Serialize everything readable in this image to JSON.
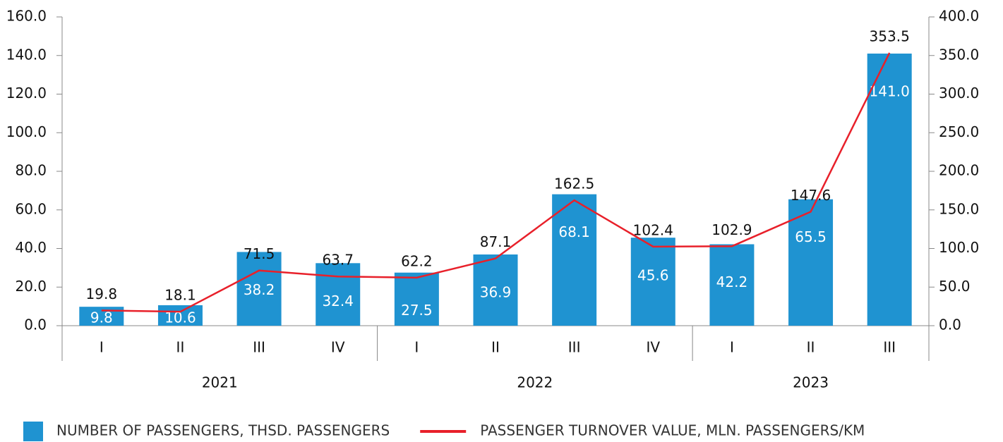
{
  "chart_data": {
    "type": "combo",
    "categories": [
      "I",
      "II",
      "III",
      "IV",
      "I",
      "II",
      "III",
      "IV",
      "I",
      "II",
      "III"
    ],
    "groups": [
      {
        "name": "2021",
        "count": 4
      },
      {
        "name": "2022",
        "count": 4
      },
      {
        "name": "2023",
        "count": 3
      }
    ],
    "series": [
      {
        "name": "NUMBER OF PASSENGERS, THSD. PASSENGERS",
        "type": "bar",
        "color": "#1f93d1",
        "values": [
          9.8,
          10.6,
          38.2,
          32.4,
          27.5,
          36.9,
          68.1,
          45.6,
          42.2,
          65.5,
          141.0
        ],
        "value_labels": [
          "9.8",
          "10.6",
          "38.2",
          "32.4",
          "27.5",
          "36.9",
          "68.1",
          "45.6",
          "42.2",
          "65.5",
          "141.0"
        ]
      },
      {
        "name": "PASSENGER TURNOVER VALUE, MLN. PASSENGERS/KM",
        "type": "line",
        "axis": "y2",
        "color": "#e8202a",
        "values": [
          19.8,
          18.1,
          71.5,
          63.7,
          62.2,
          87.1,
          162.5,
          102.4,
          102.9,
          147.6,
          353.5
        ],
        "value_labels": [
          "19.8",
          "18.1",
          "71.5",
          "63.7",
          "62.2",
          "87.1",
          "162.5",
          "102.4",
          "102.9",
          "147.6",
          "353.5"
        ]
      }
    ],
    "ylim": [
      0,
      160
    ],
    "yticks": [
      {
        "value": 0,
        "label": "0.0"
      },
      {
        "value": 20,
        "label": "20.0"
      },
      {
        "value": 40,
        "label": "40.0"
      },
      {
        "value": 60,
        "label": "60.0"
      },
      {
        "value": 80,
        "label": "80.0"
      },
      {
        "value": 100,
        "label": "100.0"
      },
      {
        "value": 120,
        "label": "120.0"
      },
      {
        "value": 140,
        "label": "140.0"
      },
      {
        "value": 160,
        "label": "160.0"
      }
    ],
    "y2lim": [
      0,
      400
    ],
    "y2ticks": [
      {
        "value": 0,
        "label": "0.0"
      },
      {
        "value": 50,
        "label": "50.0"
      },
      {
        "value": 100,
        "label": "100.0"
      },
      {
        "value": 150,
        "label": "150.0"
      },
      {
        "value": 200,
        "label": "200.0"
      },
      {
        "value": 250,
        "label": "250.0"
      },
      {
        "value": 300,
        "label": "300.0"
      },
      {
        "value": 350,
        "label": "350.0"
      },
      {
        "value": 400,
        "label": "400.0"
      }
    ],
    "legend": "bottom"
  }
}
